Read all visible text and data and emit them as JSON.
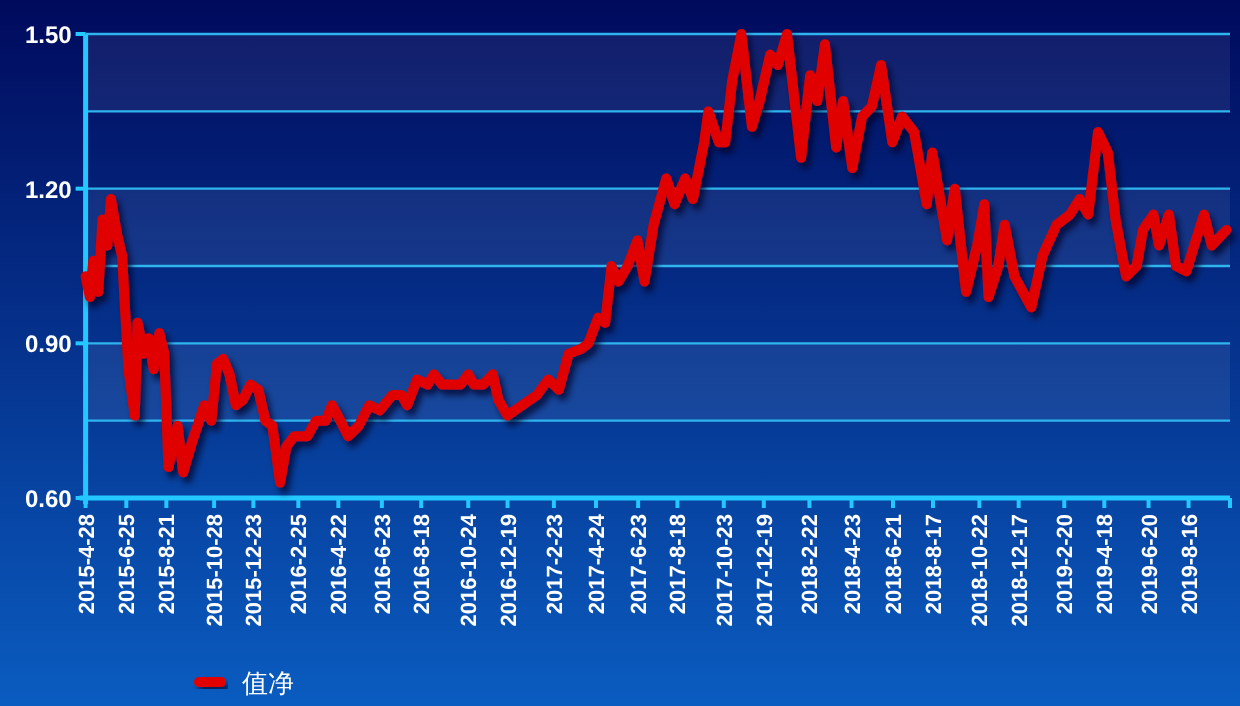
{
  "chart_data": {
    "type": "line",
    "x": [
      "2015-04-28",
      "2015-05-04",
      "2015-05-09",
      "2015-05-16",
      "2015-05-22",
      "2015-05-29",
      "2015-06-03",
      "2015-06-12",
      "2015-06-19",
      "2015-06-23",
      "2015-06-28",
      "2015-07-07",
      "2015-07-11",
      "2015-07-20",
      "2015-07-27",
      "2015-08-03",
      "2015-08-11",
      "2015-08-18",
      "2015-08-24",
      "2015-09-06",
      "2015-09-14",
      "2015-09-27",
      "2015-10-14",
      "2015-10-24",
      "2015-11-01",
      "2015-11-10",
      "2015-11-19",
      "2015-11-28",
      "2015-12-08",
      "2015-12-19",
      "2015-12-30",
      "2016-01-09",
      "2016-01-19",
      "2016-01-30",
      "2016-02-08",
      "2016-02-19",
      "2016-03-09",
      "2016-03-21",
      "2016-04-04",
      "2016-04-13",
      "2016-04-21",
      "2016-05-06",
      "2016-05-21",
      "2016-06-05",
      "2016-06-20",
      "2016-07-08",
      "2016-07-21",
      "2016-07-29",
      "2016-08-12",
      "2016-08-27",
      "2016-09-05",
      "2016-09-17",
      "2016-10-13",
      "2016-10-24",
      "2016-11-01",
      "2016-11-14",
      "2016-11-28",
      "2016-12-06",
      "2016-12-19",
      "2017-01-09",
      "2017-01-30",
      "2017-02-15",
      "2017-03-02",
      "2017-03-16",
      "2017-04-04",
      "2017-04-13",
      "2017-04-27",
      "2017-05-07",
      "2017-05-16",
      "2017-05-26",
      "2017-06-08",
      "2017-06-22",
      "2017-07-02",
      "2017-07-15",
      "2017-08-02",
      "2017-08-14",
      "2017-08-29",
      "2017-09-09",
      "2017-09-25",
      "2017-10-01",
      "2017-10-16",
      "2017-10-25",
      "2017-11-04",
      "2017-11-17",
      "2017-12-02",
      "2017-12-13",
      "2017-12-28",
      "2018-01-08",
      "2018-01-21",
      "2018-02-10",
      "2018-02-23",
      "2018-03-05",
      "2018-03-16",
      "2018-04-01",
      "2018-04-11",
      "2018-04-24",
      "2018-05-08",
      "2018-05-22",
      "2018-06-04",
      "2018-06-20",
      "2018-07-04",
      "2018-07-21",
      "2018-08-08",
      "2018-08-16",
      "2018-09-06",
      "2018-09-17",
      "2018-10-03",
      "2018-10-19",
      "2018-10-29",
      "2018-11-04",
      "2018-11-18",
      "2018-11-27",
      "2018-12-11",
      "2019-01-04",
      "2019-01-20",
      "2019-02-09",
      "2019-02-28",
      "2019-03-14",
      "2019-03-26",
      "2019-04-09",
      "2019-04-23",
      "2019-05-04",
      "2019-05-19",
      "2019-06-03",
      "2019-06-12",
      "2019-06-27",
      "2019-07-05",
      "2019-07-19",
      "2019-07-29",
      "2019-08-13",
      "2019-08-24",
      "2019-09-07",
      "2019-09-18",
      "2019-10-09"
    ],
    "series": [
      {
        "name": "值净",
        "color": "#e00000",
        "values": [
          1.03,
          0.99,
          1.06,
          1.0,
          1.14,
          1.09,
          1.18,
          1.11,
          1.07,
          0.97,
          0.85,
          0.76,
          0.94,
          0.88,
          0.91,
          0.85,
          0.92,
          0.88,
          0.66,
          0.74,
          0.65,
          0.71,
          0.78,
          0.75,
          0.86,
          0.87,
          0.84,
          0.78,
          0.79,
          0.82,
          0.81,
          0.75,
          0.74,
          0.63,
          0.7,
          0.72,
          0.72,
          0.75,
          0.75,
          0.78,
          0.76,
          0.72,
          0.74,
          0.78,
          0.77,
          0.8,
          0.8,
          0.78,
          0.83,
          0.82,
          0.84,
          0.82,
          0.82,
          0.84,
          0.82,
          0.82,
          0.84,
          0.79,
          0.76,
          0.78,
          0.8,
          0.83,
          0.81,
          0.88,
          0.89,
          0.9,
          0.95,
          0.94,
          1.05,
          1.02,
          1.05,
          1.1,
          1.02,
          1.13,
          1.22,
          1.17,
          1.22,
          1.18,
          1.29,
          1.35,
          1.29,
          1.29,
          1.41,
          1.5,
          1.32,
          1.37,
          1.46,
          1.44,
          1.5,
          1.26,
          1.42,
          1.37,
          1.48,
          1.28,
          1.37,
          1.24,
          1.34,
          1.36,
          1.44,
          1.29,
          1.34,
          1.31,
          1.17,
          1.27,
          1.1,
          1.2,
          1.0,
          1.09,
          1.17,
          0.99,
          1.05,
          1.13,
          1.03,
          0.97,
          1.07,
          1.13,
          1.15,
          1.18,
          1.15,
          1.31,
          1.27,
          1.14,
          1.03,
          1.05,
          1.12,
          1.15,
          1.09,
          1.15,
          1.05,
          1.04,
          1.09,
          1.15,
          1.09,
          1.12
        ]
      }
    ],
    "xlim": [
      "2015-04-28",
      "2019-10-14"
    ],
    "xticks": [
      {
        "value": "2015-04-28",
        "label": "2015-4-28"
      },
      {
        "value": "2015-06-25",
        "label": "2015-6-25"
      },
      {
        "value": "2015-08-21",
        "label": "2015-8-21"
      },
      {
        "value": "2015-10-28",
        "label": "2015-10-28"
      },
      {
        "value": "2015-12-23",
        "label": "2015-12-23"
      },
      {
        "value": "2016-02-25",
        "label": "2016-2-25"
      },
      {
        "value": "2016-04-22",
        "label": "2016-4-22"
      },
      {
        "value": "2016-06-23",
        "label": "2016-6-23"
      },
      {
        "value": "2016-08-18",
        "label": "2016-8-18"
      },
      {
        "value": "2016-10-24",
        "label": "2016-10-24"
      },
      {
        "value": "2016-12-19",
        "label": "2016-12-19"
      },
      {
        "value": "2017-02-23",
        "label": "2017-2-23"
      },
      {
        "value": "2017-04-24",
        "label": "2017-4-24"
      },
      {
        "value": "2017-06-23",
        "label": "2017-6-23"
      },
      {
        "value": "2017-08-18",
        "label": "2017-8-18"
      },
      {
        "value": "2017-10-23",
        "label": "2017-10-23"
      },
      {
        "value": "2017-12-19",
        "label": "2017-12-19"
      },
      {
        "value": "2018-02-22",
        "label": "2018-2-22"
      },
      {
        "value": "2018-04-23",
        "label": "2018-4-23"
      },
      {
        "value": "2018-06-21",
        "label": "2018-6-21"
      },
      {
        "value": "2018-08-17",
        "label": "2018-8-17"
      },
      {
        "value": "2018-10-22",
        "label": "2018-10-22"
      },
      {
        "value": "2018-12-17",
        "label": "2018-12-17"
      },
      {
        "value": "2019-02-20",
        "label": "2019-2-20"
      },
      {
        "value": "2019-04-18",
        "label": "2019-4-18"
      },
      {
        "value": "2019-06-20",
        "label": "2019-6-20"
      },
      {
        "value": "2019-08-16",
        "label": "2019-8-16"
      },
      {
        "value": "2019-10-14",
        "label": null
      }
    ],
    "ylim": [
      0.6,
      1.5
    ],
    "yticks": [
      {
        "value": 0.6,
        "label": "0.60"
      },
      {
        "value": 0.75,
        "label": null
      },
      {
        "value": 0.9,
        "label": "0.90"
      },
      {
        "value": 1.05,
        "label": null
      },
      {
        "value": 1.2,
        "label": "1.20"
      },
      {
        "value": 1.35,
        "label": null
      },
      {
        "value": 1.5,
        "label": "1.50"
      }
    ],
    "grid": "y",
    "legend": "bottom left",
    "marker": "none",
    "line_style": "solid"
  }
}
